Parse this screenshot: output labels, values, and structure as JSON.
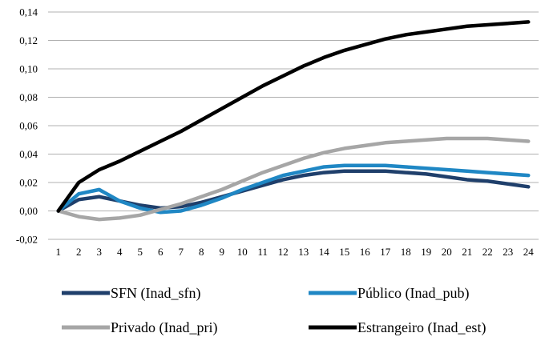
{
  "chart_data": {
    "type": "line",
    "title": "",
    "xlabel": "",
    "ylabel": "",
    "x": [
      1,
      2,
      3,
      4,
      5,
      6,
      7,
      8,
      9,
      10,
      11,
      12,
      13,
      14,
      15,
      16,
      17,
      18,
      19,
      20,
      21,
      22,
      23,
      24
    ],
    "ylim": [
      -0.02,
      0.14
    ],
    "yticks": [
      "-0,02",
      "0,00",
      "0,02",
      "0,04",
      "0,06",
      "0,08",
      "0,10",
      "0,12",
      "0,14"
    ],
    "ytick_values": [
      -0.02,
      0,
      0.02,
      0.04,
      0.06,
      0.08,
      0.1,
      0.12,
      0.14
    ],
    "grid": "horizontal",
    "legend_position": "bottom",
    "series": [
      {
        "name": "SFN (Inad_sfn)",
        "color": "#1f3f6b",
        "values": [
          0.0,
          0.008,
          0.01,
          0.007,
          0.004,
          0.002,
          0.003,
          0.006,
          0.01,
          0.014,
          0.018,
          0.022,
          0.025,
          0.027,
          0.028,
          0.028,
          0.028,
          0.027,
          0.026,
          0.024,
          0.022,
          0.021,
          0.019,
          0.017
        ]
      },
      {
        "name": "Público (Inad_pub)",
        "color": "#1f87c4",
        "values": [
          0.0,
          0.012,
          0.015,
          0.007,
          0.002,
          -0.001,
          0.0,
          0.004,
          0.009,
          0.015,
          0.02,
          0.025,
          0.028,
          0.031,
          0.032,
          0.032,
          0.032,
          0.031,
          0.03,
          0.029,
          0.028,
          0.027,
          0.026,
          0.025
        ]
      },
      {
        "name": "Privado (Inad_pri)",
        "color": "#a6a6a6",
        "values": [
          0.0,
          -0.004,
          -0.006,
          -0.005,
          -0.003,
          0.001,
          0.005,
          0.01,
          0.015,
          0.021,
          0.027,
          0.032,
          0.037,
          0.041,
          0.044,
          0.046,
          0.048,
          0.049,
          0.05,
          0.051,
          0.051,
          0.051,
          0.05,
          0.049
        ]
      },
      {
        "name": "Estrangeiro (Inad_est)",
        "color": "#000000",
        "values": [
          0.0,
          0.02,
          0.029,
          0.035,
          0.042,
          0.049,
          0.056,
          0.064,
          0.072,
          0.08,
          0.088,
          0.095,
          0.102,
          0.108,
          0.113,
          0.117,
          0.121,
          0.124,
          0.126,
          0.128,
          0.13,
          0.131,
          0.132,
          0.133
        ]
      }
    ]
  }
}
